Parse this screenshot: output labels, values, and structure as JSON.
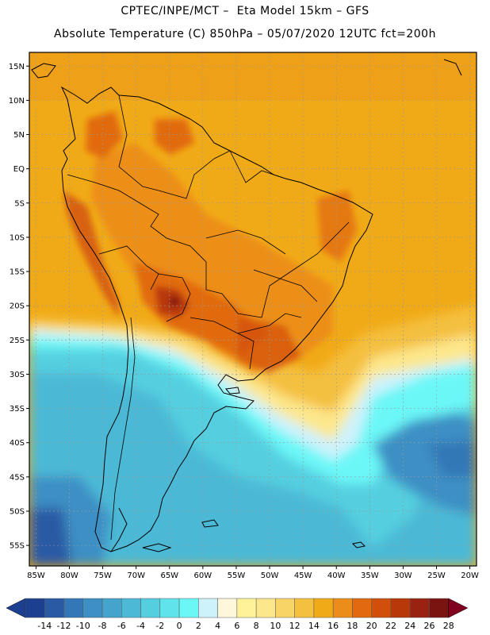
{
  "header": {
    "line1": "CPTEC/INPE/MCT –  Eta Model 15km – GFS",
    "line2": "Absolute Temperature (C) 850hPa – 05/07/2020 12UTC fct=200h"
  },
  "map": {
    "lon_range": [
      -86,
      -19
    ],
    "lat_range": [
      -58,
      17
    ],
    "lat_ticks": [
      {
        "value": 15,
        "label": "15N"
      },
      {
        "value": 10,
        "label": "10N"
      },
      {
        "value": 5,
        "label": "5N"
      },
      {
        "value": 0,
        "label": "EQ"
      },
      {
        "value": -5,
        "label": "5S"
      },
      {
        "value": -10,
        "label": "10S"
      },
      {
        "value": -15,
        "label": "15S"
      },
      {
        "value": -20,
        "label": "20S"
      },
      {
        "value": -25,
        "label": "25S"
      },
      {
        "value": -30,
        "label": "30S"
      },
      {
        "value": -35,
        "label": "35S"
      },
      {
        "value": -40,
        "label": "40S"
      },
      {
        "value": -45,
        "label": "45S"
      },
      {
        "value": -50,
        "label": "50S"
      },
      {
        "value": -55,
        "label": "55S"
      }
    ],
    "lon_ticks": [
      {
        "value": -85,
        "label": "85W"
      },
      {
        "value": -80,
        "label": "80W"
      },
      {
        "value": -75,
        "label": "75W"
      },
      {
        "value": -70,
        "label": "70W"
      },
      {
        "value": -65,
        "label": "65W"
      },
      {
        "value": -60,
        "label": "60W"
      },
      {
        "value": -55,
        "label": "55W"
      },
      {
        "value": -50,
        "label": "50W"
      },
      {
        "value": -45,
        "label": "45W"
      },
      {
        "value": -40,
        "label": "40W"
      },
      {
        "value": -35,
        "label": "35W"
      },
      {
        "value": -30,
        "label": "30W"
      },
      {
        "value": -25,
        "label": "25W"
      },
      {
        "value": -20,
        "label": "20W"
      }
    ]
  },
  "colorbar": {
    "colors": [
      "#1c3f8f",
      "#2a5aa4",
      "#3377b6",
      "#3d8fc4",
      "#45a4cc",
      "#4cb9d6",
      "#55cfe0",
      "#60e3ea",
      "#6cf7f7",
      "#cdf2fb",
      "#fff7dc",
      "#fff39a",
      "#fde78c",
      "#f8d466",
      "#f4c040",
      "#f1aa17",
      "#ec8c1b",
      "#e16a10",
      "#d14f0a",
      "#b9380a",
      "#9a2211",
      "#7a1410",
      "#800020"
    ],
    "labels": [
      "-14",
      "-12",
      "-10",
      "-8",
      "-6",
      "-4",
      "-2",
      "0",
      "2",
      "4",
      "6",
      "8",
      "10",
      "12",
      "14",
      "16",
      "18",
      "20",
      "22",
      "24",
      "26",
      "28"
    ]
  }
}
